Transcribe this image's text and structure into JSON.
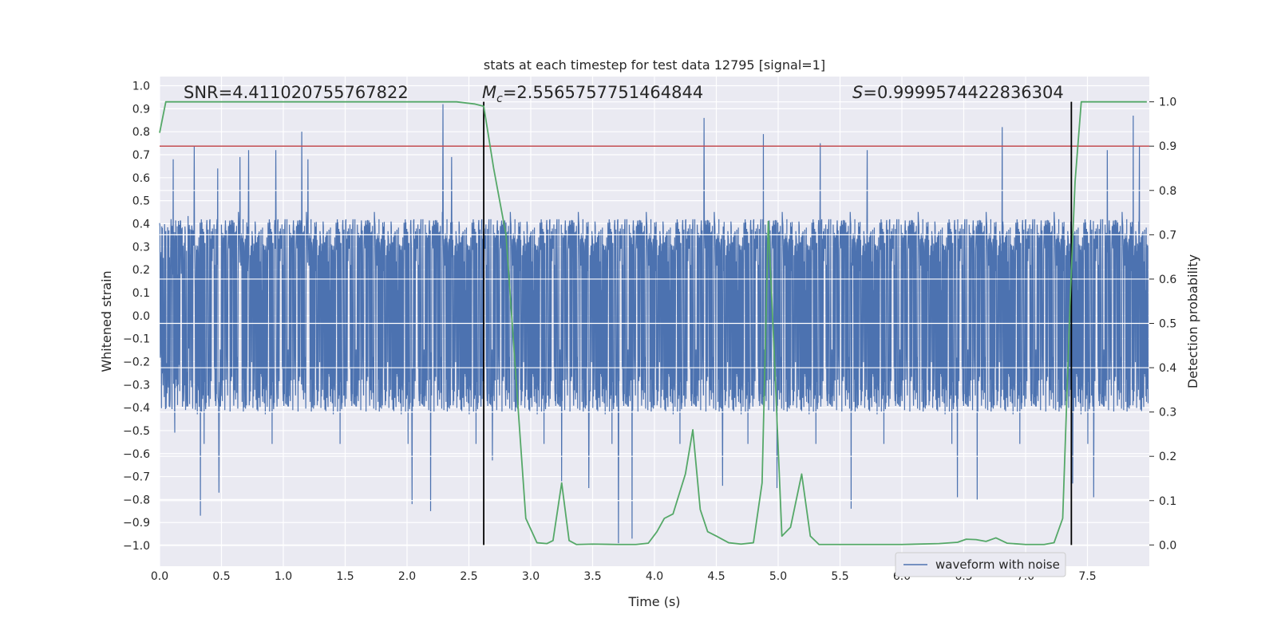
{
  "chart_data": {
    "type": "line",
    "title": "stats at each timestep for test data 12795 [signal=1]",
    "xlabel": "Time (s)",
    "ylabel": "Whitened strain",
    "y2label": "Detection probability",
    "xlim": [
      0.0,
      8.0
    ],
    "ylim": [
      -1.09,
      1.04
    ],
    "y2lim": [
      -0.048,
      1.057
    ],
    "x_ticks": [
      "0.0",
      "0.5",
      "1.0",
      "1.5",
      "2.0",
      "2.5",
      "3.0",
      "3.5",
      "4.0",
      "4.5",
      "5.0",
      "5.5",
      "6.0",
      "6.5",
      "7.0",
      "7.5"
    ],
    "y_ticks": [
      "1.0",
      "0.9",
      "0.8",
      "0.7",
      "0.6",
      "0.5",
      "0.4",
      "0.3",
      "0.2",
      "0.1",
      "0.0",
      "−0.1",
      "−0.2",
      "−0.3",
      "−0.4",
      "−0.5",
      "−0.6",
      "−0.7",
      "−0.8",
      "−0.9",
      "−1.0"
    ],
    "y2_ticks": [
      "0.0",
      "0.1",
      "0.2",
      "0.3",
      "0.4",
      "0.5",
      "0.6",
      "0.7",
      "0.8",
      "0.9",
      "1.0"
    ],
    "grid": true,
    "legend_position": "lower-right",
    "annotations": {
      "snr_label": "SNR=4.411020755767822",
      "mc_label": "=2.5565757751464844",
      "s_label": "=0.9999574422836304",
      "mc_symbol": "M",
      "mc_sub": "c",
      "s_symbol": "S"
    },
    "threshold": {
      "y2": 0.9,
      "color": "#c44e52"
    },
    "vertical_markers": [
      {
        "x": 2.62,
        "y2": [
          0.0,
          1.0
        ]
      },
      {
        "x": 7.37,
        "y2": [
          0.0,
          1.0
        ]
      }
    ],
    "series": [
      {
        "name": "waveform with noise",
        "color": "#4c72b0",
        "kind": "noise-waveform",
        "x_range": [
          0.0,
          7.99
        ],
        "typical_amplitude": 0.42,
        "spikes": [
          [
            0.11,
            0.68
          ],
          [
            0.28,
            0.74
          ],
          [
            0.33,
            -0.87
          ],
          [
            0.47,
            0.64
          ],
          [
            0.48,
            -0.77
          ],
          [
            0.65,
            0.69
          ],
          [
            0.72,
            0.72
          ],
          [
            0.94,
            0.72
          ],
          [
            1.15,
            0.8
          ],
          [
            1.2,
            0.68
          ],
          [
            2.04,
            -0.82
          ],
          [
            2.19,
            -0.85
          ],
          [
            2.29,
            0.92
          ],
          [
            2.36,
            0.69
          ],
          [
            2.69,
            -0.63
          ],
          [
            3.25,
            -0.72
          ],
          [
            3.47,
            -0.75
          ],
          [
            3.71,
            -0.99
          ],
          [
            3.82,
            -0.97
          ],
          [
            4.4,
            0.86
          ],
          [
            4.55,
            -0.74
          ],
          [
            4.88,
            0.79
          ],
          [
            4.99,
            -0.75
          ],
          [
            5.34,
            0.75
          ],
          [
            5.59,
            -0.84
          ],
          [
            5.72,
            0.72
          ],
          [
            6.45,
            -0.79
          ],
          [
            6.61,
            -0.8
          ],
          [
            6.81,
            0.82
          ],
          [
            7.38,
            -0.73
          ],
          [
            7.55,
            -0.79
          ],
          [
            7.66,
            0.72
          ],
          [
            7.87,
            0.87
          ],
          [
            7.92,
            0.74
          ]
        ]
      },
      {
        "name": "",
        "color": "#55a868",
        "axis": "y2",
        "x": [
          0.0,
          0.05,
          0.1,
          0.3,
          0.6,
          1.0,
          1.5,
          2.0,
          2.4,
          2.55,
          2.62,
          2.7,
          2.8,
          2.9,
          2.96,
          3.05,
          3.13,
          3.18,
          3.25,
          3.31,
          3.37,
          3.5,
          3.7,
          3.85,
          3.95,
          4.02,
          4.08,
          4.15,
          4.25,
          4.31,
          4.37,
          4.43,
          4.5,
          4.6,
          4.7,
          4.8,
          4.87,
          4.92,
          4.97,
          5.03,
          5.1,
          5.19,
          5.26,
          5.33,
          5.5,
          6.0,
          6.3,
          6.45,
          6.52,
          6.6,
          6.68,
          6.76,
          6.85,
          7.0,
          7.15,
          7.23,
          7.3,
          7.36,
          7.4,
          7.45,
          7.6,
          7.98
        ],
        "y": [
          0.93,
          1.0,
          1.0,
          1.0,
          1.0,
          1.0,
          1.0,
          1.0,
          1.0,
          0.995,
          0.99,
          0.85,
          0.7,
          0.3,
          0.06,
          0.005,
          0.003,
          0.01,
          0.14,
          0.01,
          0.001,
          0.002,
          0.001,
          0.001,
          0.004,
          0.03,
          0.06,
          0.07,
          0.16,
          0.26,
          0.08,
          0.03,
          0.02,
          0.005,
          0.002,
          0.005,
          0.14,
          0.73,
          0.42,
          0.02,
          0.04,
          0.16,
          0.02,
          0.001,
          0.001,
          0.001,
          0.003,
          0.006,
          0.013,
          0.012,
          0.008,
          0.016,
          0.004,
          0.001,
          0.001,
          0.005,
          0.06,
          0.55,
          0.82,
          1.0,
          1.0,
          1.0
        ]
      }
    ]
  }
}
